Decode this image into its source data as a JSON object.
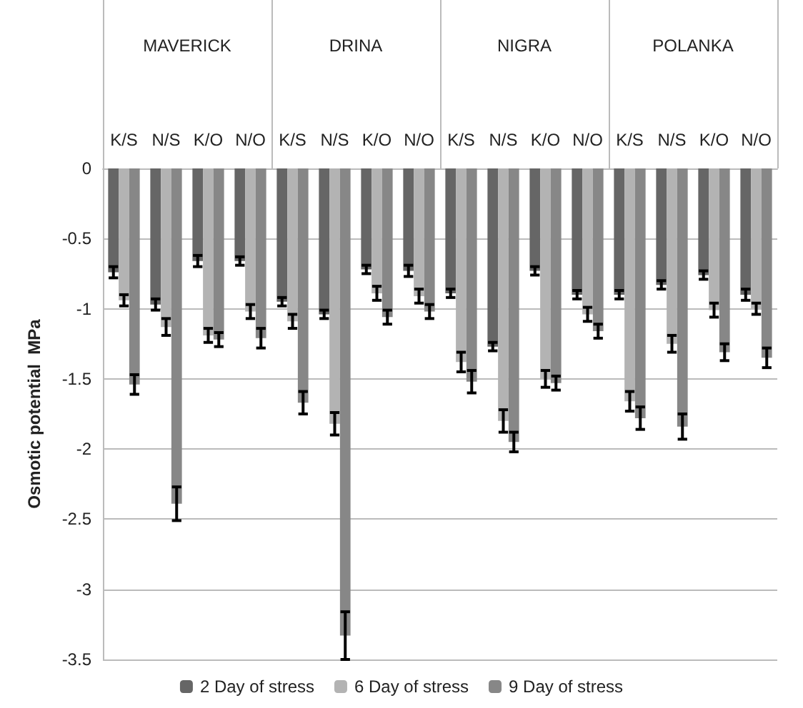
{
  "chart_data": {
    "type": "bar",
    "ylabel": "Osmotic potential  MPa",
    "categories": [
      "K/S",
      "N/S",
      "K/O",
      "N/O",
      "K/S",
      "N/S",
      "K/O",
      "N/O",
      "K/S",
      "N/S",
      "K/O",
      "N/O",
      "K/S",
      "N/S",
      "K/O",
      "N/O"
    ],
    "annotations": [
      "MAVERICK",
      "DRINA",
      "NIGRA",
      "POLANKA"
    ],
    "series": [
      {
        "name": "2 Day of stress",
        "color": "#666666",
        "values": [
          -0.74,
          -0.97,
          -0.66,
          -0.66,
          -0.95,
          -1.04,
          -0.72,
          -0.73,
          -0.89,
          -1.27,
          -0.73,
          -0.9,
          -0.9,
          -0.83,
          -0.76,
          -0.9
        ],
        "errors": [
          0.04,
          0.04,
          0.04,
          0.03,
          0.03,
          0.03,
          0.03,
          0.04,
          0.03,
          0.03,
          0.03,
          0.03,
          0.03,
          0.03,
          0.03,
          0.04
        ]
      },
      {
        "name": "6 Day of stress",
        "color": "#b3b3b3",
        "values": [
          -0.94,
          -1.13,
          -1.19,
          -1.02,
          -1.09,
          -1.82,
          -0.89,
          -0.91,
          -1.38,
          -1.8,
          -1.5,
          -1.04,
          -1.66,
          -1.25,
          -1.01,
          -1.0
        ],
        "errors": [
          0.04,
          0.06,
          0.05,
          0.05,
          0.05,
          0.08,
          0.05,
          0.05,
          0.07,
          0.08,
          0.06,
          0.05,
          0.07,
          0.06,
          0.05,
          0.04
        ]
      },
      {
        "name": "9 Day of stress",
        "color": "#878787",
        "values": [
          -1.54,
          -2.39,
          -1.22,
          -1.21,
          -1.67,
          -3.33,
          -1.06,
          -1.02,
          -1.52,
          -1.95,
          -1.53,
          -1.16,
          -1.78,
          -1.84,
          -1.31,
          -1.35
        ],
        "errors": [
          0.07,
          0.12,
          0.05,
          0.07,
          0.08,
          0.17,
          0.05,
          0.05,
          0.08,
          0.07,
          0.05,
          0.05,
          0.08,
          0.09,
          0.06,
          0.07
        ]
      }
    ],
    "ylim": [
      -3.5,
      0
    ],
    "yticks": [
      0,
      -0.5,
      -1,
      -1.5,
      -2,
      -2.5,
      -3,
      -3.5
    ],
    "grid": "y",
    "legend": "bottom"
  }
}
